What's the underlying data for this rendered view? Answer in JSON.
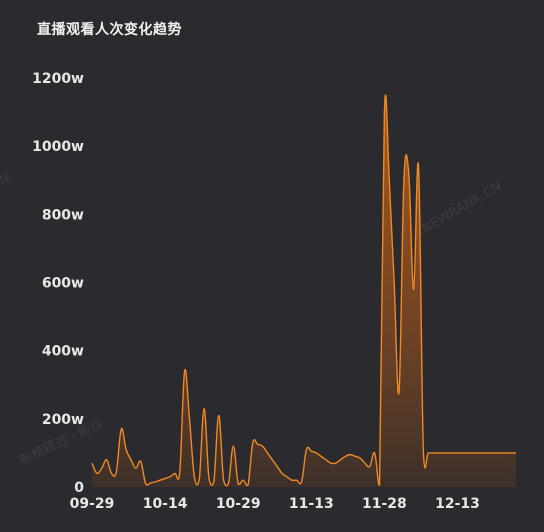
{
  "chart_data": {
    "type": "area",
    "title": "直播观看人次变化趋势",
    "y_unit_suffix": "w",
    "ylim": [
      0,
      1200
    ],
    "yticks": [
      0,
      200,
      400,
      600,
      800,
      1000,
      1200
    ],
    "ytick_labels": [
      "0",
      "200w",
      "400w",
      "600w",
      "800w",
      "1000w",
      "1200w"
    ],
    "xtick_labels": [
      "09-29",
      "10-14",
      "10-29",
      "11-13",
      "11-28",
      "12-13"
    ],
    "xtick_positions": [
      0,
      15,
      30,
      45,
      60,
      75
    ],
    "x_range": [
      0,
      87
    ],
    "grid": false,
    "colors": {
      "line": "#f08a24",
      "fill_top": "#a8561b",
      "fill_bottom": "#4a3528",
      "background": "#2b2a2f"
    },
    "series": [
      {
        "x": [
          0,
          1,
          2,
          3,
          4,
          5,
          6,
          7,
          8,
          9,
          10,
          11,
          12,
          13,
          14,
          15,
          16,
          17,
          18,
          19,
          20,
          21,
          22,
          23,
          24,
          25,
          26,
          27,
          28,
          29,
          30,
          31,
          32,
          33,
          34,
          35,
          36,
          37,
          38,
          39,
          40,
          41,
          42,
          43,
          44,
          45,
          46,
          47,
          48,
          49,
          50,
          51,
          52,
          53,
          54,
          55,
          56,
          57,
          58,
          59,
          60,
          61,
          62,
          63,
          64,
          65,
          66,
          67,
          68,
          69,
          70,
          71,
          72,
          73,
          74,
          75,
          76,
          77,
          78,
          79,
          80,
          81,
          82,
          83,
          84,
          85,
          86,
          87
        ],
        "values": [
          70,
          40,
          55,
          80,
          40,
          45,
          170,
          110,
          80,
          55,
          75,
          10,
          12,
          15,
          20,
          25,
          30,
          40,
          40,
          340,
          200,
          30,
          20,
          230,
          25,
          15,
          210,
          20,
          10,
          120,
          10,
          20,
          5,
          130,
          125,
          120,
          100,
          80,
          60,
          40,
          30,
          20,
          20,
          15,
          110,
          105,
          100,
          90,
          80,
          70,
          70,
          80,
          90,
          95,
          90,
          85,
          70,
          60,
          100,
          5,
          1100,
          900,
          600,
          280,
          900,
          920,
          580,
          940,
          100,
          100,
          100,
          100,
          100,
          100,
          100,
          100,
          100,
          100,
          100,
          100,
          100,
          100,
          100,
          100,
          100,
          100,
          100,
          100
        ]
      }
    ]
  },
  "watermarks": [
    "XD.NEWRANK.CN",
    "新榜精选 · 新抖",
    "N"
  ]
}
